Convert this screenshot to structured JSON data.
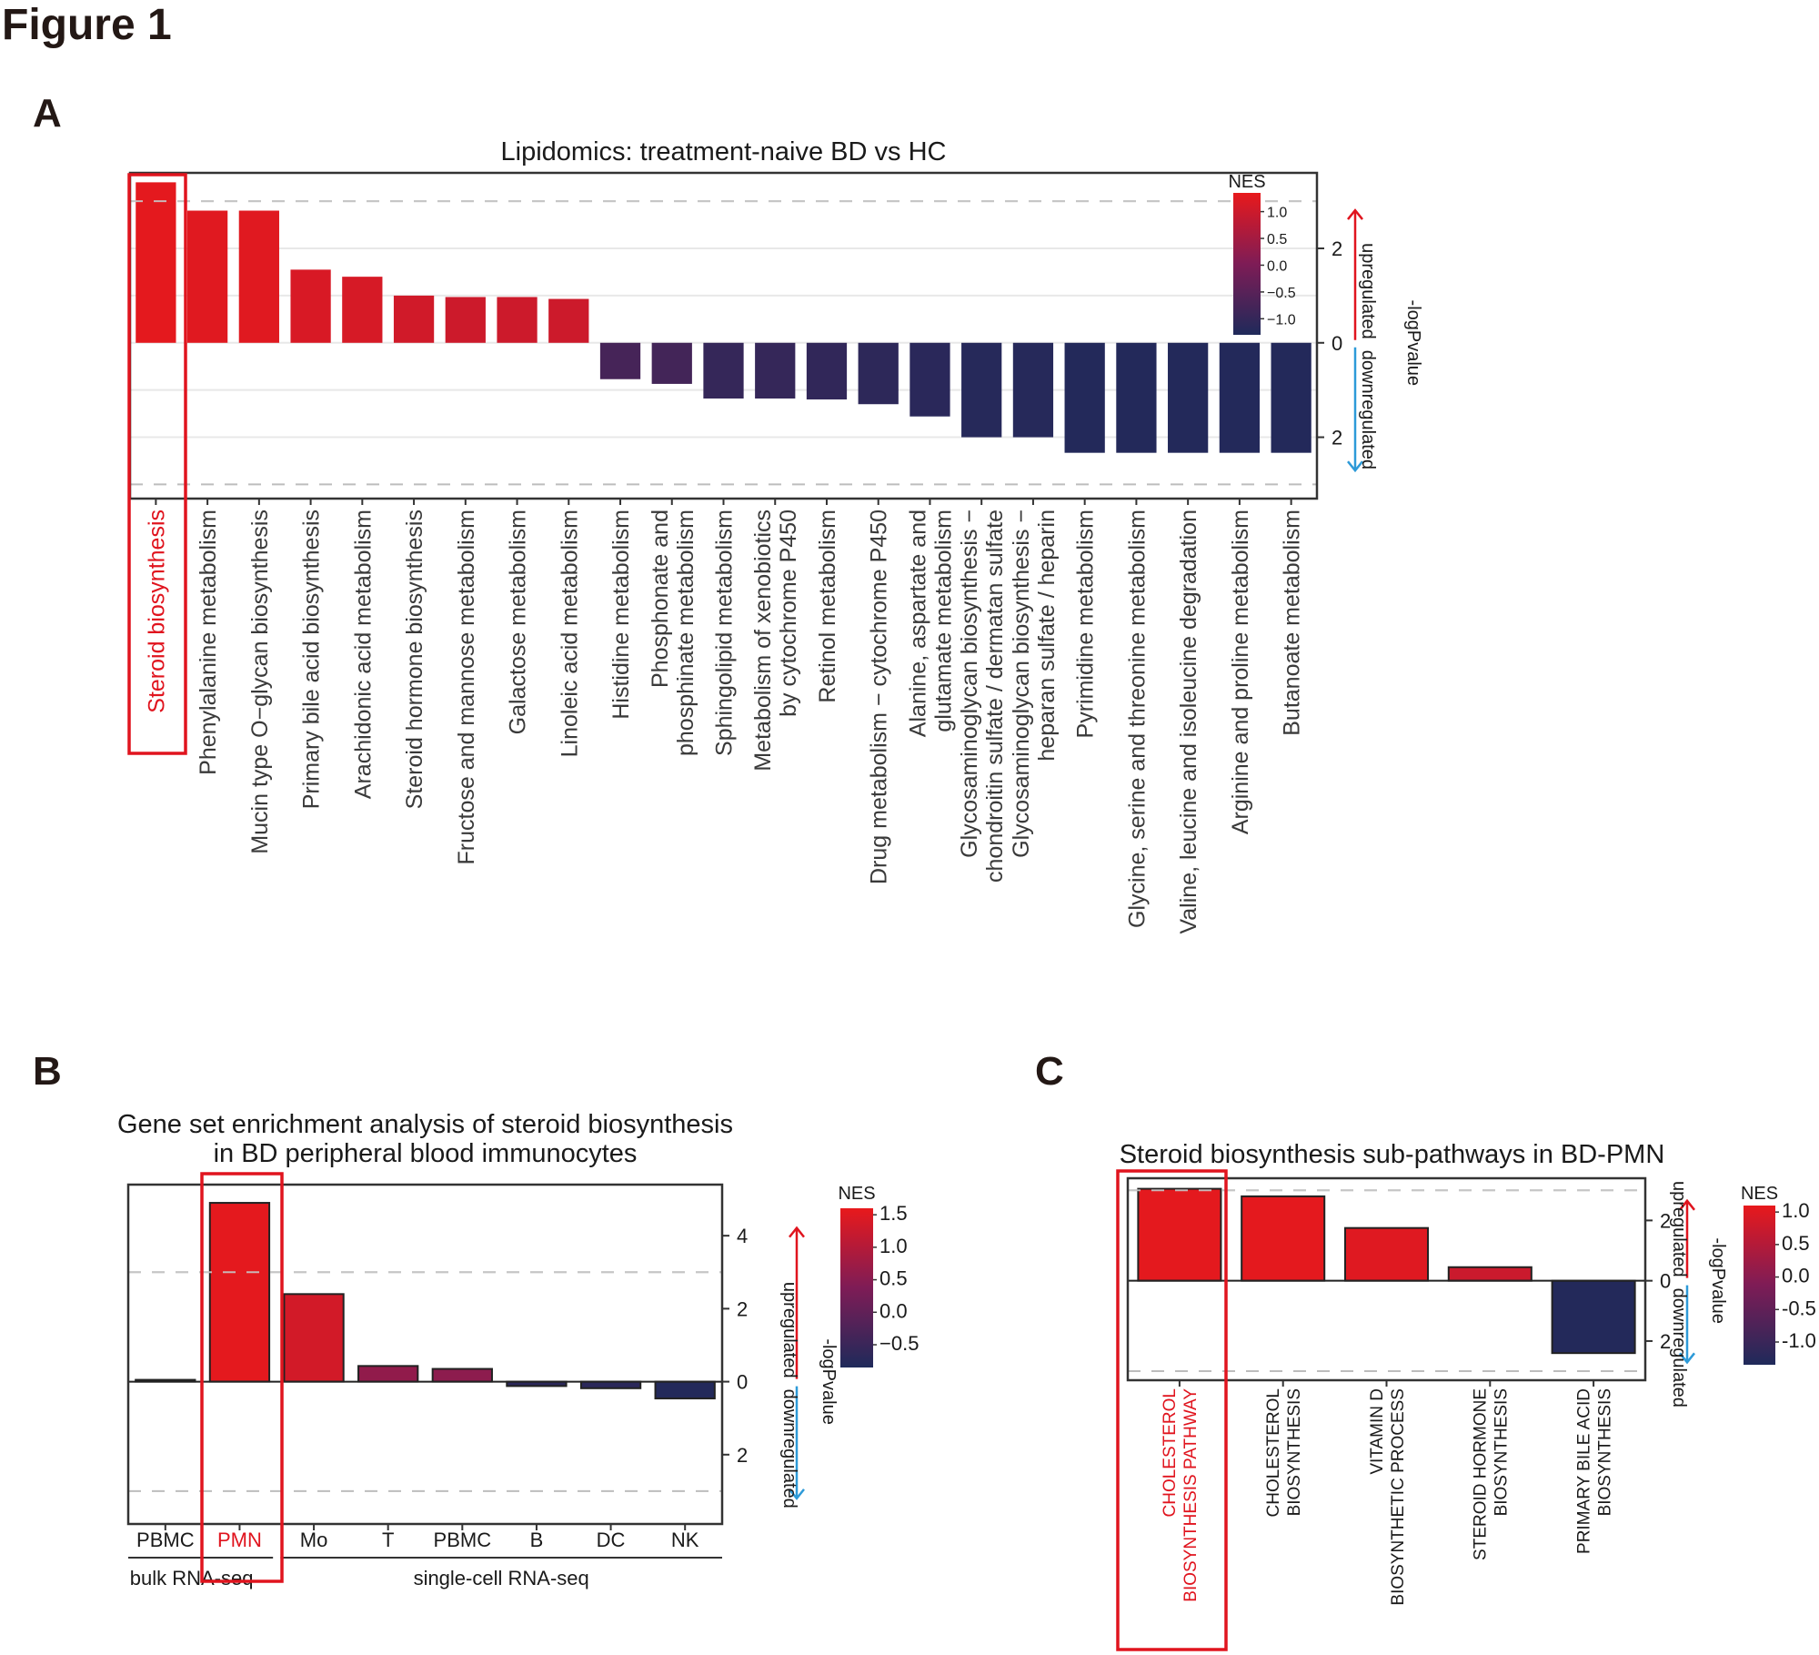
{
  "figure": {
    "title": "Figure 1",
    "panels": [
      "A",
      "B",
      "C"
    ]
  },
  "chart_data": [
    {
      "id": "A",
      "type": "bar",
      "title": "Lipidomics: treatment-naive BD vs HC",
      "xlabel": "",
      "ylabel": "-logPvalue",
      "y_direction_labels": {
        "up": "upregulated",
        "down": "downregulated"
      },
      "y_ticks": [
        {
          "value": 2,
          "label": "2"
        },
        {
          "value": 0,
          "label": "0"
        },
        {
          "value": -2,
          "label": "2"
        }
      ],
      "ylim": [
        -3.3,
        3.6
      ],
      "gridlines": [
        -2,
        -1,
        0,
        1,
        2
      ],
      "threshold_lines": [
        3.0,
        -3.0
      ],
      "highlight_index": 0,
      "legend": {
        "title": "NES",
        "ticks": [
          "1.0",
          "0.5",
          "0.0",
          "−0.5",
          "−1.0"
        ],
        "tick_values": [
          1.0,
          0.5,
          0.0,
          -0.5,
          -1.0
        ],
        "range": [
          -1.3,
          1.35
        ],
        "position": "top-right"
      },
      "colors": {
        "high": "#e8191c",
        "mid": "#7e1c56",
        "low": "#1f2a5a",
        "highlight": "#e0141e"
      },
      "categories": [
        [
          "Steroid biosynthesis"
        ],
        [
          "Phenylalanine metabolism"
        ],
        [
          "Mucin type O−glycan biosynthesis"
        ],
        [
          "Primary bile acid biosynthesis"
        ],
        [
          "Arachidonic acid metabolism"
        ],
        [
          "Steroid hormone biosynthesis"
        ],
        [
          "Fructose and mannose metabolism"
        ],
        [
          "Galactose metabolism"
        ],
        [
          "Linoleic acid metabolism"
        ],
        [
          "Histidine metabolism"
        ],
        [
          "Phosphonate and",
          "phosphinate metabolism"
        ],
        [
          "Sphingolipid metabolism"
        ],
        [
          "Metabolism of xenobiotics",
          "by cytochrome P450"
        ],
        [
          "Retinol metabolism"
        ],
        [
          "Drug metabolism − cytochrome P450"
        ],
        [
          "Alanine, aspartate and",
          "glutamate metabolism"
        ],
        [
          "Glycosaminoglycan biosynthesis −",
          "chondroitin sulfate / dermatan sulfate"
        ],
        [
          "Glycosaminoglycan biosynthesis −",
          "heparan sulfate / heparin"
        ],
        [
          "Pyrimidine metabolism"
        ],
        [
          "Glycine, serine and threonine metabolism"
        ],
        [
          "Valine, leucine and isoleucine degradation"
        ],
        [
          "Arginine and proline metabolism"
        ],
        [
          "Butanoate metabolism"
        ]
      ],
      "values": [
        3.4,
        2.8,
        2.8,
        1.55,
        1.4,
        1.0,
        0.97,
        0.97,
        0.93,
        -0.77,
        -0.87,
        -1.18,
        -1.18,
        -1.2,
        -1.3,
        -1.56,
        -2.0,
        -2.0,
        -2.33,
        -2.33,
        -2.33,
        -2.33,
        -2.33
      ],
      "nes": [
        1.3,
        1.25,
        1.25,
        1.15,
        1.12,
        1.05,
        1.0,
        1.0,
        1.0,
        -0.75,
        -0.8,
        -1.0,
        -1.0,
        -1.05,
        -1.1,
        -1.15,
        -1.2,
        -1.2,
        -1.25,
        -1.25,
        -1.25,
        -1.25,
        -1.25
      ]
    },
    {
      "id": "B",
      "type": "bar",
      "title": [
        "Gene set enrichment analysis of steroid biosynthesis",
        "in BD peripheral blood immunocytes"
      ],
      "xlabel": "",
      "ylabel": "-logPvalue",
      "y_direction_labels": {
        "up": "upregulated",
        "down": "downregulated"
      },
      "y_ticks": [
        {
          "value": 4,
          "label": "4"
        },
        {
          "value": 2,
          "label": "2"
        },
        {
          "value": 0,
          "label": "0"
        },
        {
          "value": -2,
          "label": "2"
        }
      ],
      "ylim": [
        -3.9,
        5.4
      ],
      "threshold_lines": [
        3.0,
        -3.0
      ],
      "highlight_index": 1,
      "legend": {
        "title": "NES",
        "ticks": [
          "1.5",
          "1.0",
          "0.5",
          "0.0",
          "−0.5"
        ],
        "tick_values": [
          1.5,
          1.0,
          0.5,
          0.0,
          -0.5
        ],
        "range": [
          -0.85,
          1.6
        ],
        "position": "right"
      },
      "colors": {
        "high": "#e8191c",
        "mid": "#7e1c56",
        "low": "#1f2a5a",
        "highlight": "#e0141e"
      },
      "categories": [
        [
          "PBMC"
        ],
        [
          "PMN"
        ],
        [
          "Mo"
        ],
        [
          "T"
        ],
        [
          "PBMC"
        ],
        [
          "B"
        ],
        [
          "DC"
        ],
        [
          "NK"
        ]
      ],
      "groups": [
        {
          "label": "bulk RNA-seq",
          "from": 0,
          "to": 1
        },
        {
          "label": "single-cell RNA-seq",
          "from": 2,
          "to": 7
        }
      ],
      "values": [
        0.05,
        4.9,
        2.4,
        0.43,
        0.35,
        -0.12,
        -0.18,
        -0.46
      ],
      "nes": [
        0.0,
        1.55,
        1.35,
        0.6,
        0.55,
        -0.7,
        -0.7,
        -0.8
      ]
    },
    {
      "id": "C",
      "type": "bar",
      "title": "Steroid biosynthesis sub-pathways in BD-PMN",
      "xlabel": "",
      "ylabel": "-logPvalue",
      "y_direction_labels": {
        "up": "upregulated",
        "down": "downregulated"
      },
      "y_ticks": [
        {
          "value": 2,
          "label": "2"
        },
        {
          "value": 0,
          "label": "0"
        },
        {
          "value": -2,
          "label": "2"
        }
      ],
      "ylim": [
        -3.3,
        3.4
      ],
      "threshold_lines": [
        3.0,
        -3.0
      ],
      "highlight_index": 0,
      "legend": {
        "title": "NES",
        "ticks": [
          "1.0",
          "0.5",
          "0.0",
          "-0.5",
          "-1.0"
        ],
        "tick_values": [
          1.0,
          0.5,
          0.0,
          -0.5,
          -1.0
        ],
        "range": [
          -1.35,
          1.1
        ],
        "position": "right"
      },
      "colors": {
        "high": "#e8191c",
        "mid": "#7e1c56",
        "low": "#1f2a5a",
        "highlight": "#e0141e"
      },
      "categories": [
        [
          "CHOLESTEROL",
          "BIOSYNTHESIS PATHWAY"
        ],
        [
          "CHOLESTEROL",
          "BIOSYNTHESIS"
        ],
        [
          "VITAMIN D",
          "BIOSYNTHETIC PROCESS"
        ],
        [
          "STEROID HORMONE",
          "BIOSYNTHESIS"
        ],
        [
          "PRIMARY BILE ACID",
          "BIOSYNTHESIS"
        ]
      ],
      "values": [
        3.05,
        2.8,
        1.75,
        0.45,
        -2.4
      ],
      "nes": [
        1.05,
        1.05,
        1.0,
        0.75,
        -1.3
      ]
    }
  ]
}
